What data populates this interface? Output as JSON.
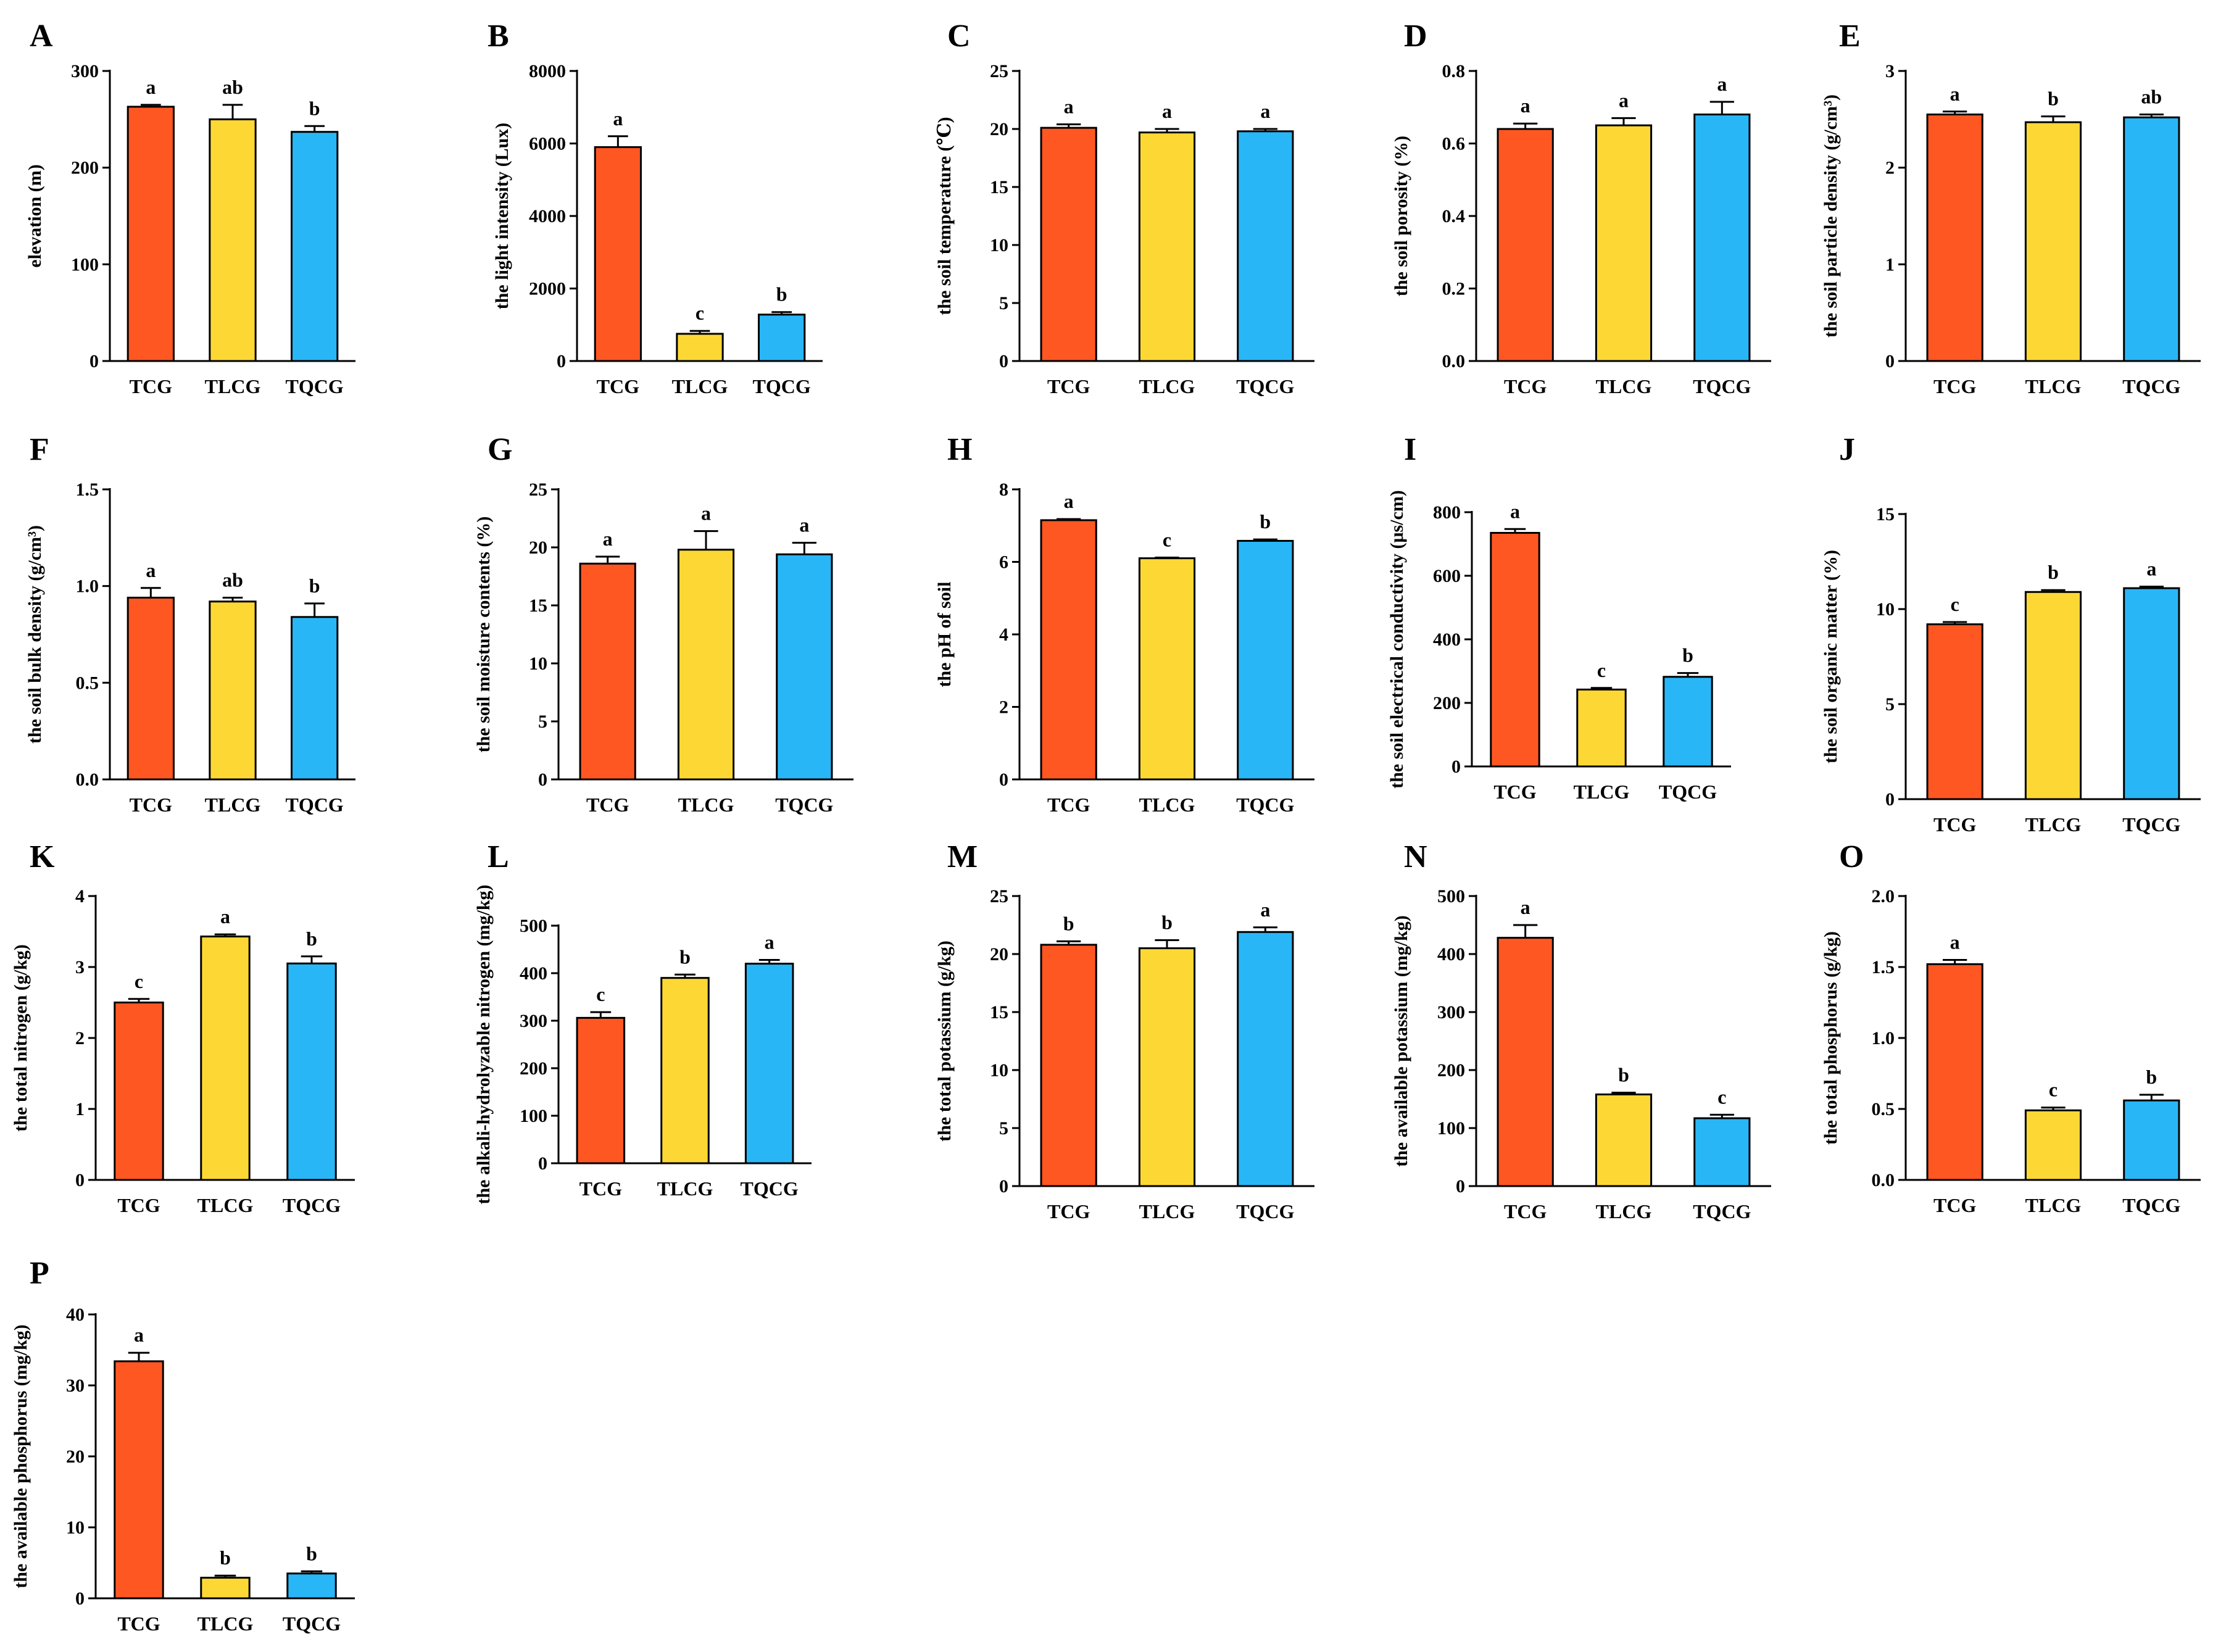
{
  "figure": {
    "categories": [
      "TCG",
      "TLCG",
      "TQCG"
    ],
    "colors": [
      "#FF5722",
      "#FDD835",
      "#29B6F6"
    ]
  },
  "chart_data": [
    {
      "id": "A",
      "type": "bar",
      "title": "",
      "ylabel": "elevation (m)",
      "ylim": [
        0,
        300
      ],
      "yticks": [
        "0",
        "100",
        "200",
        "300"
      ],
      "categories": [
        "TCG",
        "TLCG",
        "TQCG"
      ],
      "values": [
        263,
        250,
        237
      ],
      "errors": [
        2,
        15,
        6
      ],
      "letters": [
        "a",
        "ab",
        "b"
      ]
    },
    {
      "id": "B",
      "type": "bar",
      "title": "",
      "ylabel": "the light intensity (Lux)",
      "ylim": [
        0,
        8000
      ],
      "yticks": [
        "0",
        "2000",
        "4000",
        "6000",
        "8000"
      ],
      "categories": [
        "TCG",
        "TLCG",
        "TQCG"
      ],
      "values": [
        5900,
        750,
        1280
      ],
      "errors": [
        300,
        80,
        70
      ],
      "letters": [
        "a",
        "c",
        "b"
      ]
    },
    {
      "id": "C",
      "type": "bar",
      "title": "",
      "ylabel": "the soil temperature  (℃)",
      "ylim": [
        0,
        25
      ],
      "yticks": [
        "0",
        "5",
        "10",
        "15",
        "20",
        "25"
      ],
      "categories": [
        "TCG",
        "TLCG",
        "TQCG"
      ],
      "values": [
        20.1,
        19.7,
        19.8
      ],
      "errors": [
        0.3,
        0.3,
        0.2
      ],
      "letters": [
        "a",
        "a",
        "a"
      ]
    },
    {
      "id": "D",
      "type": "bar",
      "title": "",
      "ylabel": "the soil porosity (%)",
      "ylim": [
        0,
        0.8
      ],
      "yticks": [
        "0.0",
        "0.2",
        "0.4",
        "0.6",
        "0.8"
      ],
      "categories": [
        "TCG",
        "TLCG",
        "TQCG"
      ],
      "values": [
        0.64,
        0.65,
        0.68
      ],
      "errors": [
        0.015,
        0.02,
        0.035
      ],
      "letters": [
        "a",
        "a",
        "a"
      ]
    },
    {
      "id": "E",
      "type": "bar",
      "title": "",
      "ylabel": "the soil particle density (g/cm³)",
      "ylim": [
        0,
        3
      ],
      "yticks": [
        "0",
        "1",
        "2",
        "3"
      ],
      "categories": [
        "TCG",
        "TLCG",
        "TQCG"
      ],
      "values": [
        2.55,
        2.47,
        2.52
      ],
      "errors": [
        0.03,
        0.06,
        0.03
      ],
      "letters": [
        "a",
        "b",
        "ab"
      ]
    },
    {
      "id": "F",
      "type": "bar",
      "title": "",
      "ylabel": "the soil bulk density (g/cm³)",
      "ylim": [
        0,
        1.5
      ],
      "yticks": [
        "0.0",
        "0.5",
        "1.0",
        "1.5"
      ],
      "categories": [
        "TCG",
        "TLCG",
        "TQCG"
      ],
      "values": [
        0.94,
        0.92,
        0.84
      ],
      "errors": [
        0.05,
        0.02,
        0.07
      ],
      "letters": [
        "a",
        "ab",
        "b"
      ]
    },
    {
      "id": "G",
      "type": "bar",
      "title": "",
      "ylabel": "the soil moisture contents (%)",
      "ylim": [
        0,
        25
      ],
      "yticks": [
        "0",
        "5",
        "10",
        "15",
        "20",
        "25"
      ],
      "categories": [
        "TCG",
        "TLCG",
        "TQCG"
      ],
      "values": [
        18.6,
        19.8,
        19.4
      ],
      "errors": [
        0.6,
        1.6,
        1.0
      ],
      "letters": [
        "a",
        "a",
        "a"
      ]
    },
    {
      "id": "H",
      "type": "bar",
      "title": "",
      "ylabel": "the pH of soil",
      "ylim": [
        0,
        8
      ],
      "yticks": [
        "0",
        "2",
        "4",
        "6",
        "8"
      ],
      "categories": [
        "TCG",
        "TLCG",
        "TQCG"
      ],
      "values": [
        7.15,
        6.1,
        6.58
      ],
      "errors": [
        0.03,
        0.02,
        0.04
      ],
      "letters": [
        "a",
        "c",
        "b"
      ]
    },
    {
      "id": "I",
      "type": "bar",
      "title": "",
      "ylabel": "the soil electrical conductivity (μs/cm)",
      "ylim": [
        0,
        800
      ],
      "yticks": [
        "0",
        "200",
        "400",
        "600",
        "800"
      ],
      "categories": [
        "TCG",
        "TLCG",
        "TQCG"
      ],
      "values": [
        735,
        242,
        282
      ],
      "errors": [
        12,
        5,
        12
      ],
      "letters": [
        "a",
        "c",
        "b"
      ]
    },
    {
      "id": "J",
      "type": "bar",
      "title": "",
      "ylabel": "the soil organic matter (%)",
      "ylim": [
        0,
        15
      ],
      "yticks": [
        "0",
        "5",
        "10",
        "15"
      ],
      "categories": [
        "TCG",
        "TLCG",
        "TQCG"
      ],
      "values": [
        9.2,
        10.9,
        11.1
      ],
      "errors": [
        0.12,
        0.1,
        0.08
      ],
      "letters": [
        "c",
        "b",
        "a"
      ]
    },
    {
      "id": "K",
      "type": "bar",
      "title": "",
      "ylabel": "the total nitrogen (g/kg)",
      "ylim": [
        0,
        4
      ],
      "yticks": [
        "0",
        "1",
        "2",
        "3",
        "4"
      ],
      "categories": [
        "TCG",
        "TLCG",
        "TQCG"
      ],
      "values": [
        2.5,
        3.43,
        3.05
      ],
      "errors": [
        0.05,
        0.03,
        0.1
      ],
      "letters": [
        "c",
        "a",
        "b"
      ]
    },
    {
      "id": "L",
      "type": "bar",
      "title": "",
      "ylabel": "the alkali-hydrolyzable nitrogen (mg/kg)",
      "ylim": [
        0,
        500
      ],
      "yticks": [
        "0",
        "100",
        "200",
        "300",
        "400",
        "500"
      ],
      "categories": [
        "TCG",
        "TLCG",
        "TQCG"
      ],
      "values": [
        306,
        390,
        420
      ],
      "errors": [
        12,
        7,
        8
      ],
      "letters": [
        "c",
        "b",
        "a"
      ]
    },
    {
      "id": "M",
      "type": "bar",
      "title": "",
      "ylabel": "the total potassium (g/kg)",
      "ylim": [
        0,
        25
      ],
      "yticks": [
        "0",
        "5",
        "10",
        "15",
        "20",
        "25"
      ],
      "categories": [
        "TCG",
        "TLCG",
        "TQCG"
      ],
      "values": [
        20.8,
        20.5,
        21.9
      ],
      "errors": [
        0.3,
        0.7,
        0.4
      ],
      "letters": [
        "b",
        "b",
        "a"
      ]
    },
    {
      "id": "N",
      "type": "bar",
      "title": "",
      "ylabel": "the available potassium (mg/kg)",
      "ylim": [
        0,
        500
      ],
      "yticks": [
        "0",
        "100",
        "200",
        "300",
        "400",
        "500"
      ],
      "categories": [
        "TCG",
        "TLCG",
        "TQCG"
      ],
      "values": [
        428,
        158,
        117
      ],
      "errors": [
        22,
        3,
        6
      ],
      "letters": [
        "a",
        "b",
        "c"
      ]
    },
    {
      "id": "O",
      "type": "bar",
      "title": "",
      "ylabel": "the total phosphorus (g/kg)",
      "ylim": [
        0,
        2
      ],
      "yticks": [
        "0.0",
        "0.5",
        "1.0",
        "1.5",
        "2.0"
      ],
      "categories": [
        "TCG",
        "TLCG",
        "TQCG"
      ],
      "values": [
        1.52,
        0.49,
        0.56
      ],
      "errors": [
        0.03,
        0.02,
        0.04
      ],
      "letters": [
        "a",
        "c",
        "b"
      ]
    },
    {
      "id": "P",
      "type": "bar",
      "title": "",
      "ylabel": "the available phosphorus (mg/kg)",
      "ylim": [
        0,
        40
      ],
      "yticks": [
        "0",
        "10",
        "20",
        "30",
        "40"
      ],
      "categories": [
        "TCG",
        "TLCG",
        "TQCG"
      ],
      "values": [
        33.4,
        2.9,
        3.5
      ],
      "errors": [
        1.2,
        0.3,
        0.3
      ],
      "letters": [
        "a",
        "b",
        "b"
      ]
    }
  ]
}
